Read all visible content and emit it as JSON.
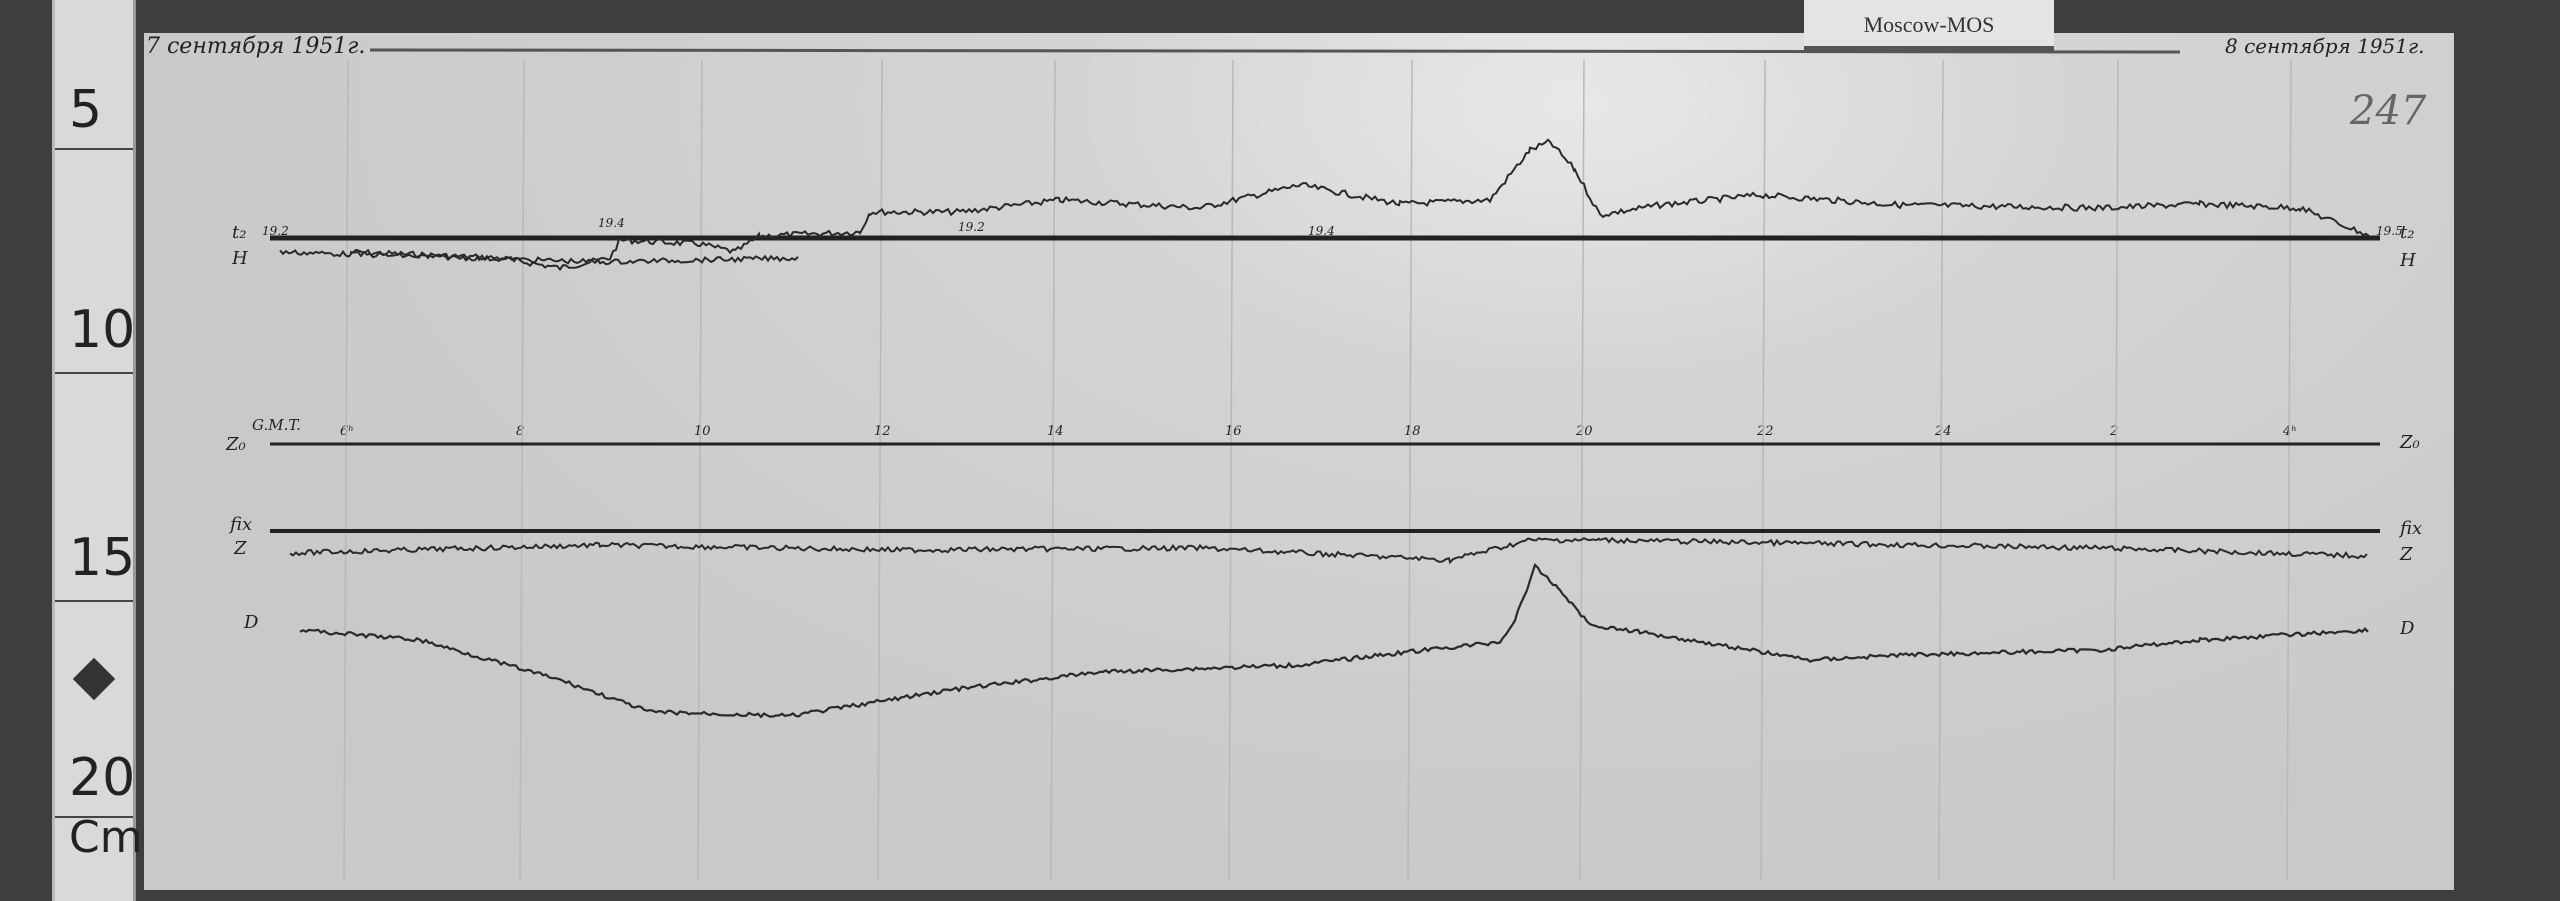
{
  "ruler": {
    "marks": [
      "5",
      "10",
      "15",
      "20"
    ],
    "unit": "Cm"
  },
  "label_card": "Moscow-MOS",
  "header": {
    "date_start": "7 сентября 1951г.",
    "date_end": "8 сентября 1951г.",
    "sheet_number": "247"
  },
  "traces": {
    "left_labels": {
      "t2": "t₂",
      "H": "H",
      "gmt": "G.M.T.",
      "Z0": "Z₀",
      "fix": "fix",
      "Z": "Z",
      "D": "D"
    },
    "right_labels": {
      "t2": "t₂",
      "H": "H",
      "Z0": "Z₀",
      "fix": "fix",
      "Z": "Z",
      "D": "D"
    },
    "temperature_marks": [
      "19.2",
      "19.4",
      "19.2",
      "19.4",
      "19.5"
    ],
    "hour_marks": [
      "6ʰ",
      "8",
      "10",
      "12",
      "14",
      "16",
      "18",
      "20",
      "22",
      "24",
      "2",
      "4ʰ"
    ]
  },
  "colors": {
    "paper": "#cfcfcf",
    "ink": "#222222",
    "background": "#3e3e3e"
  }
}
